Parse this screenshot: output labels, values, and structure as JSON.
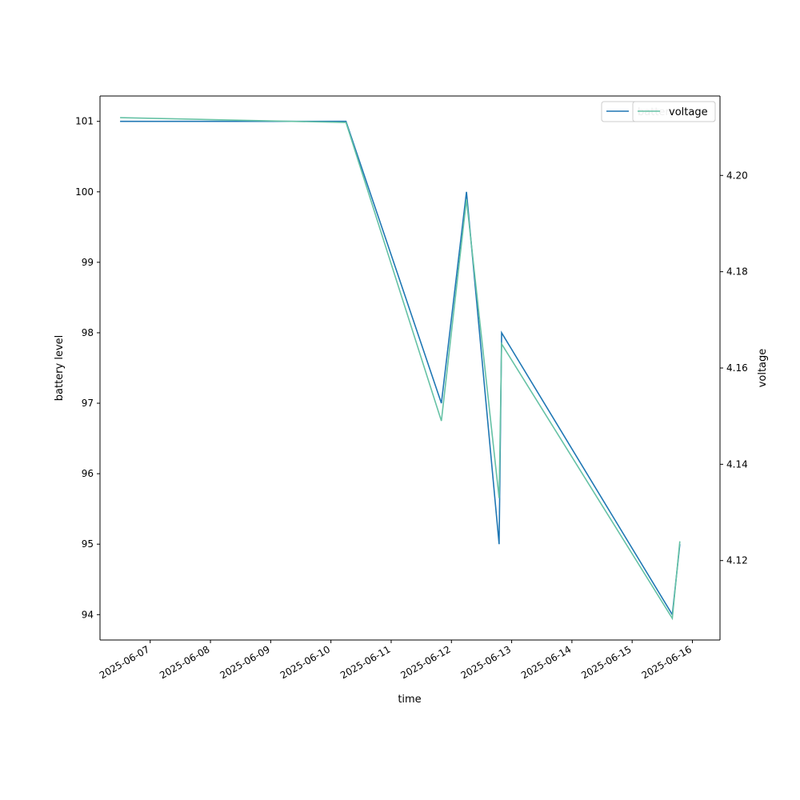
{
  "chart_data": {
    "type": "line",
    "title": "",
    "xlabel": "time",
    "ylabel": "battery level",
    "y2label": "voltage",
    "xlim": [
      "2025-06-06T04:00",
      "2025-06-16T11:00"
    ],
    "ylim": [
      93.64,
      101.36
    ],
    "y2lim": [
      4.1035,
      4.2165
    ],
    "x_ticks": [
      "2025-06-07",
      "2025-06-08",
      "2025-06-09",
      "2025-06-10",
      "2025-06-11",
      "2025-06-12",
      "2025-06-13",
      "2025-06-14",
      "2025-06-15",
      "2025-06-16"
    ],
    "y_ticks": [
      94,
      95,
      96,
      97,
      98,
      99,
      100,
      101
    ],
    "y2_ticks": [
      "4.12",
      "4.14",
      "4.16",
      "4.18",
      "4.20"
    ],
    "grid": false,
    "legend_placement": "top-right",
    "series": [
      {
        "name": "battery",
        "axis": "left",
        "color": "#1f77b4",
        "points": [
          {
            "x": "2025-06-06T12:00",
            "y": 101
          },
          {
            "x": "2025-06-10T06:00",
            "y": 101
          },
          {
            "x": "2025-06-11T20:00",
            "y": 97
          },
          {
            "x": "2025-06-12T06:00",
            "y": 100
          },
          {
            "x": "2025-06-12T19:00",
            "y": 95
          },
          {
            "x": "2025-06-12T20:00",
            "y": 98
          },
          {
            "x": "2025-06-15T16:00",
            "y": 94
          },
          {
            "x": "2025-06-15T19:00",
            "y": 95
          }
        ]
      },
      {
        "name": "voltage",
        "axis": "right",
        "color": "#66c2a5",
        "points": [
          {
            "x": "2025-06-06T12:00",
            "y": 4.212
          },
          {
            "x": "2025-06-10T06:00",
            "y": 4.211
          },
          {
            "x": "2025-06-11T20:00",
            "y": 4.149
          },
          {
            "x": "2025-06-12T06:00",
            "y": 4.195
          },
          {
            "x": "2025-06-12T19:00",
            "y": 4.133
          },
          {
            "x": "2025-06-12T20:00",
            "y": 4.165
          },
          {
            "x": "2025-06-15T16:00",
            "y": 4.108
          },
          {
            "x": "2025-06-15T19:00",
            "y": 4.124
          }
        ]
      }
    ]
  }
}
